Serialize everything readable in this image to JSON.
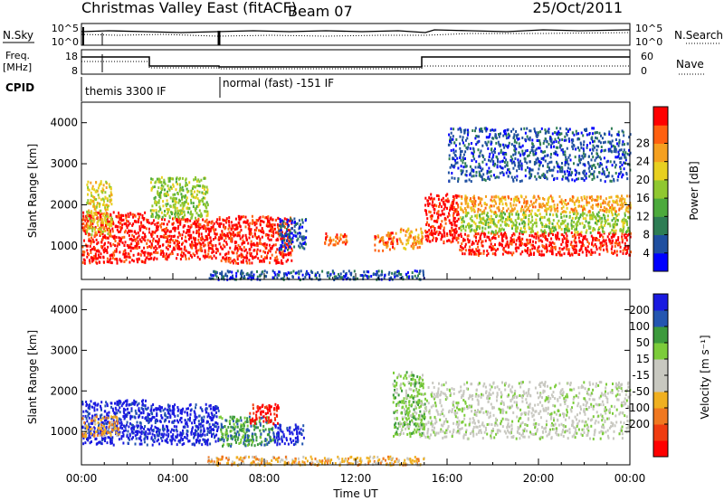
{
  "header": {
    "station": "Christmas Valley East (fitACF)",
    "beam": "Beam 07",
    "date": "25/Oct/2011"
  },
  "top_panels": {
    "nsky_label": "N.Sky",
    "nsearch_label": "N.Search",
    "freq_label": "Freq.",
    "freq_unit": "[MHz]",
    "nave_label": "Nave",
    "cpid_label": "CPID",
    "nsky_ticks": [
      "10^5",
      "10^0"
    ],
    "nsearch_ticks": [
      "10^5",
      "10^0"
    ],
    "freq_ticks": [
      "18",
      "8"
    ],
    "nave_ticks": [
      "60",
      "0"
    ]
  },
  "cpid_segments": [
    {
      "label": "themis 3300 IF",
      "start": 0,
      "end": 6.05
    },
    {
      "label": "normal (fast) -151 IF",
      "start": 6.05,
      "end": 24
    }
  ],
  "colors": {
    "power_scale": [
      "#0000ff",
      "#1f4fa0",
      "#2e7d54",
      "#4caa3c",
      "#90c830",
      "#e8d020",
      "#f5a020",
      "#ff6010",
      "#ff0000"
    ],
    "velocity_scale": [
      "#1a1ae0",
      "#2456b0",
      "#3c9a3c",
      "#7ccc3a",
      "#c8c8c0",
      "#c8c8c0",
      "#f0b020",
      "#f07820",
      "#f03c10",
      "#ff0000"
    ]
  },
  "chart_data": [
    {
      "type": "heatmap",
      "parameter": "power",
      "xlabel": "Time UT",
      "ylabel": "Slant Range [km]",
      "x_ticks": [
        "00:00",
        "04:00",
        "08:00",
        "12:00",
        "16:00",
        "20:00",
        "00:00"
      ],
      "xlim_hours": [
        0,
        24
      ],
      "ylim_km": [
        180,
        4500
      ],
      "y_ticks": [
        1000,
        2000,
        3000,
        4000
      ],
      "colorbar": {
        "label": "Power [dB]",
        "ticks": [
          "4",
          "8",
          "12",
          "16",
          "20",
          "24",
          "28"
        ]
      },
      "regions": [
        {
          "t0": 0.0,
          "t1": 2.8,
          "r0": 600,
          "r1": 1850,
          "level": 8
        },
        {
          "t0": 0.2,
          "t1": 1.3,
          "r0": 1300,
          "r1": 2600,
          "level": 5
        },
        {
          "t0": 2.8,
          "t1": 6.0,
          "r0": 700,
          "r1": 1700,
          "level": 8
        },
        {
          "t0": 3.0,
          "t1": 5.5,
          "r0": 1700,
          "r1": 2700,
          "level": 4
        },
        {
          "t0": 6.0,
          "t1": 9.2,
          "r0": 600,
          "r1": 1750,
          "level": 8
        },
        {
          "t0": 8.6,
          "t1": 9.8,
          "r0": 900,
          "r1": 1700,
          "level": 1
        },
        {
          "t0": 10.6,
          "t1": 11.6,
          "r0": 1050,
          "r1": 1350,
          "level": 7
        },
        {
          "t0": 12.8,
          "t1": 13.8,
          "r0": 900,
          "r1": 1350,
          "level": 7
        },
        {
          "t0": 13.8,
          "t1": 14.9,
          "r0": 950,
          "r1": 1450,
          "level": 6
        },
        {
          "t0": 15.0,
          "t1": 16.5,
          "r0": 1100,
          "r1": 2300,
          "level": 8
        },
        {
          "t0": 16.5,
          "t1": 24.0,
          "r0": 800,
          "r1": 1350,
          "level": 8
        },
        {
          "t0": 16.5,
          "t1": 24.0,
          "r0": 1350,
          "r1": 1850,
          "level": 4
        },
        {
          "t0": 16.5,
          "t1": 24.0,
          "r0": 1850,
          "r1": 2250,
          "level": 6
        },
        {
          "t0": 16.0,
          "t1": 24.0,
          "r0": 2600,
          "r1": 3900,
          "level": 1
        },
        {
          "t0": 5.5,
          "t1": 15.0,
          "r0": 200,
          "r1": 420,
          "level": 1
        }
      ]
    },
    {
      "type": "heatmap",
      "parameter": "velocity",
      "xlabel": "Time UT",
      "ylabel": "Slant Range [km]",
      "x_ticks": [
        "00:00",
        "04:00",
        "08:00",
        "12:00",
        "16:00",
        "20:00",
        "00:00"
      ],
      "xlim_hours": [
        0,
        24
      ],
      "ylim_km": [
        180,
        4500
      ],
      "y_ticks": [
        1000,
        2000,
        3000,
        4000
      ],
      "colorbar": {
        "label": "Velocity [m s⁻¹]",
        "ticks": [
          "200",
          "100",
          "50",
          "15",
          "-15",
          "-50",
          "-100",
          "-200"
        ]
      },
      "regions": [
        {
          "t0": 0.0,
          "t1": 2.8,
          "r0": 700,
          "r1": 1800,
          "level": 0
        },
        {
          "t0": 2.8,
          "t1": 6.0,
          "r0": 700,
          "r1": 1700,
          "level": 0
        },
        {
          "t0": 6.0,
          "t1": 8.4,
          "r0": 650,
          "r1": 1400,
          "level": 2
        },
        {
          "t0": 7.3,
          "t1": 8.6,
          "r0": 1200,
          "r1": 1700,
          "level": 9
        },
        {
          "t0": 8.4,
          "t1": 9.7,
          "r0": 700,
          "r1": 1200,
          "level": 0
        },
        {
          "t0": 13.6,
          "t1": 15.0,
          "r0": 900,
          "r1": 2500,
          "level": 3
        },
        {
          "t0": 15.0,
          "t1": 24.0,
          "r0": 850,
          "r1": 2250,
          "level": 4
        },
        {
          "t0": 5.5,
          "t1": 15.0,
          "r0": 200,
          "r1": 420,
          "level": 6
        },
        {
          "t0": 0.0,
          "t1": 1.6,
          "r0": 900,
          "r1": 1400,
          "level": 6
        }
      ]
    }
  ]
}
